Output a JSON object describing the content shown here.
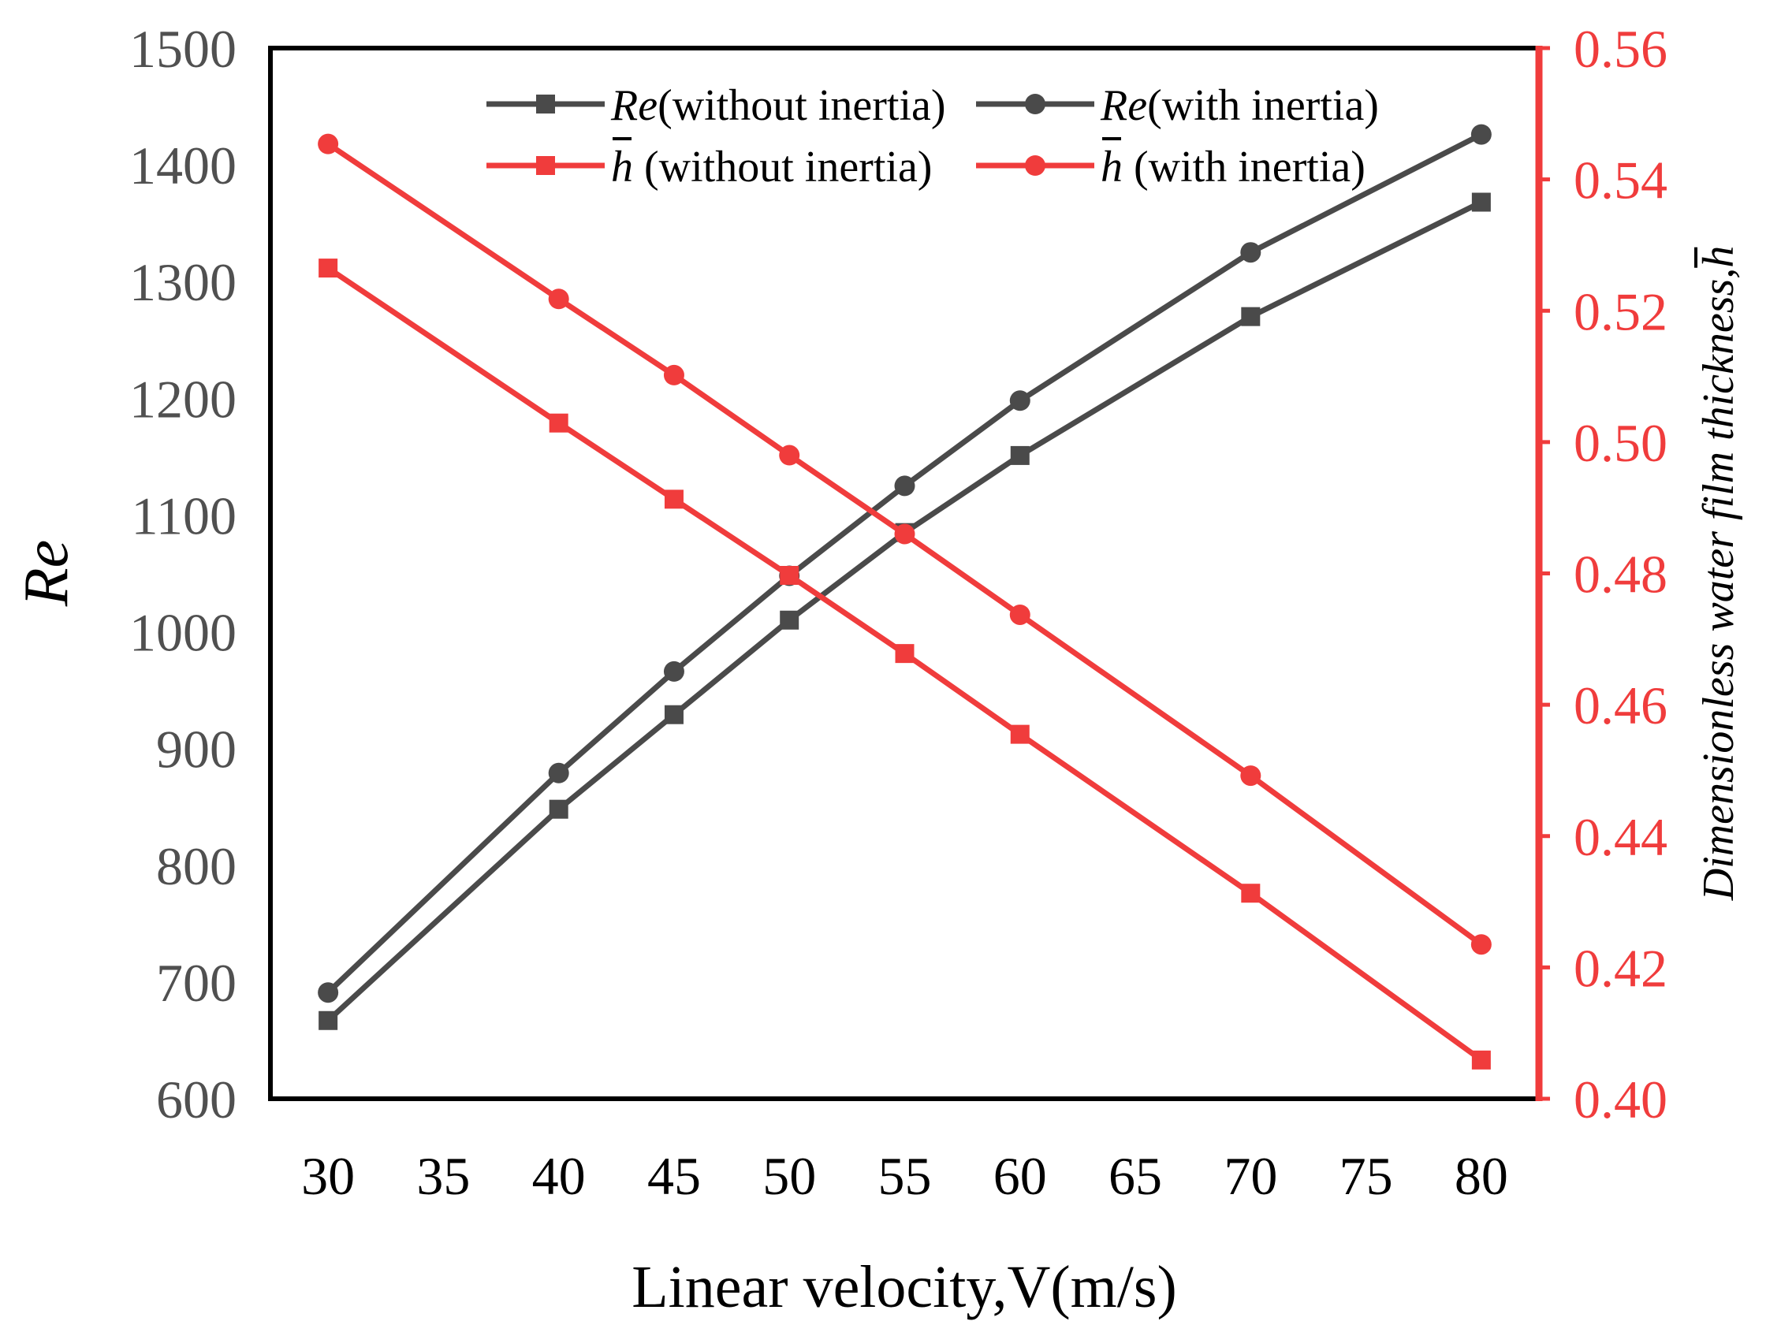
{
  "chart_data": {
    "type": "line",
    "title": "",
    "x": [
      30,
      40,
      45,
      50,
      55,
      60,
      70,
      80
    ],
    "x_ticks": [
      "30",
      "35",
      "40",
      "45",
      "50",
      "55",
      "60",
      "65",
      "70",
      "75",
      "80"
    ],
    "xlabel": "Linear velocity,V(m/s)",
    "ylabel_left": "Re",
    "ylabel_right": "Dimensionless water film thickness,h",
    "ylim_left": [
      600,
      1500
    ],
    "ylim_right": [
      0.4,
      0.56
    ],
    "y_ticks_left": [
      "600",
      "700",
      "800",
      "900",
      "1000",
      "1100",
      "1200",
      "1300",
      "1400",
      "1500"
    ],
    "y_ticks_right": [
      "0.40",
      "0.42",
      "0.44",
      "0.46",
      "0.48",
      "0.50",
      "0.52",
      "0.54",
      "0.56"
    ],
    "grid": false,
    "legend_position": "top",
    "colors": {
      "dark": "#4a4a4a",
      "red": "#f03c3c",
      "frame": "#000000",
      "left_tick_text": "#505050"
    },
    "series": [
      {
        "name": "Re(without inertia)",
        "sym": "Re",
        "suffix": "(without inertia)",
        "axis": "left",
        "marker": "square",
        "color": "#4a4a4a",
        "values": [
          667,
          848,
          929,
          1010,
          1085,
          1151,
          1270,
          1368
        ]
      },
      {
        "name": "Re(with inertia)",
        "sym": "Re",
        "suffix": "(with inertia)",
        "axis": "left",
        "marker": "circle",
        "color": "#4a4a4a",
        "values": [
          691,
          879,
          966,
          1048,
          1125,
          1198,
          1325,
          1426
        ]
      },
      {
        "name": "h (without inertia)",
        "sym": "h",
        "suffix": " (without inertia)",
        "axis": "right",
        "marker": "square",
        "color": "#f03c3c",
        "values": [
          0.5265,
          0.5029,
          0.4913,
          0.4797,
          0.4678,
          0.4555,
          0.4313,
          0.4059
        ]
      },
      {
        "name": "h (with inertia)",
        "sym": "h",
        "suffix": " (with inertia)",
        "axis": "right",
        "marker": "circle",
        "color": "#f03c3c",
        "values": [
          0.5454,
          0.5218,
          0.5102,
          0.498,
          0.486,
          0.4737,
          0.4492,
          0.4235
        ]
      }
    ]
  }
}
